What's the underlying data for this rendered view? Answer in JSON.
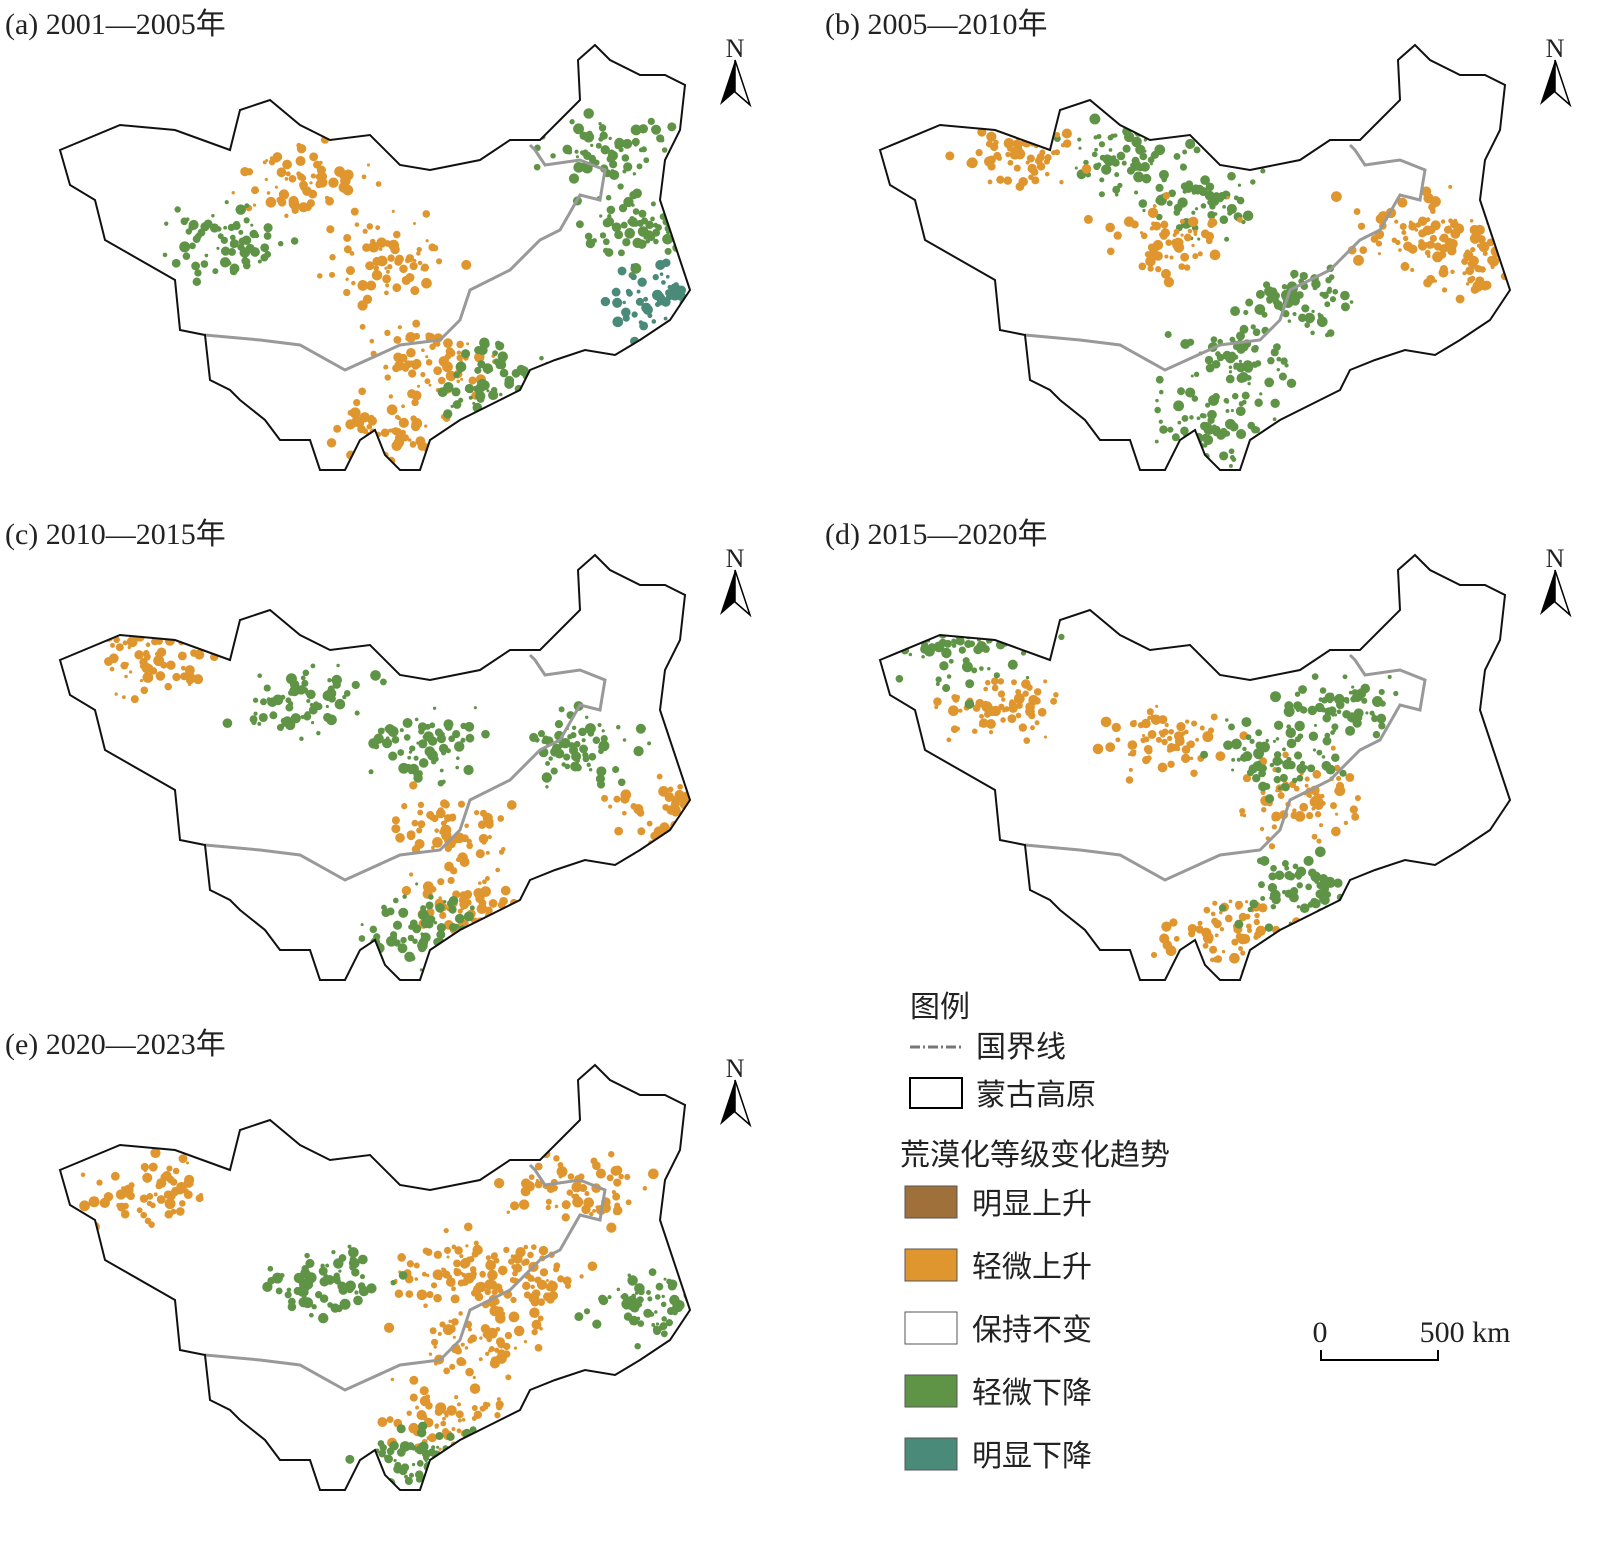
{
  "panels": [
    {
      "title": "(a) 2001—2005年",
      "north": "N"
    },
    {
      "title": "(b) 2005—2010年",
      "north": "N"
    },
    {
      "title": "(c) 2010—2015年",
      "north": "N"
    },
    {
      "title": "(d) 2015—2020年",
      "north": "N"
    },
    {
      "title": "(e) 2020—2023年",
      "north": "N"
    }
  ],
  "legend": {
    "title": "图例",
    "boundary_items": [
      {
        "label": "国界线"
      },
      {
        "label": "蒙古高原"
      }
    ],
    "trend_title": "荒漠化等级变化趋势",
    "trend_items": [
      {
        "label": "明显上升",
        "color": "#a0703a"
      },
      {
        "label": "轻微上升",
        "color": "#e0962f"
      },
      {
        "label": "保持不变",
        "color": "#ffffff"
      },
      {
        "label": "轻微下降",
        "color": "#5f9447"
      },
      {
        "label": "明显下降",
        "color": "#4a8a78"
      }
    ]
  },
  "scale_bar": {
    "labels": [
      "0",
      "500 km"
    ]
  }
}
